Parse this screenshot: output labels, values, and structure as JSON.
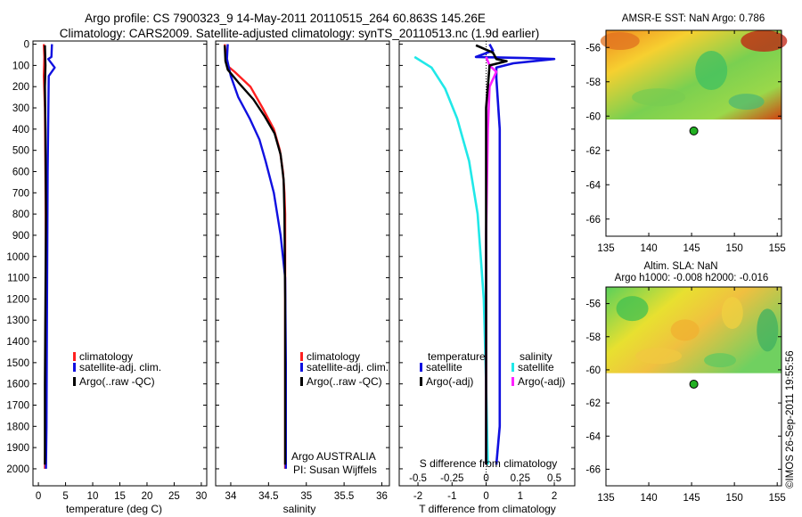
{
  "title": {
    "line1": "Argo profile: CS 7900323_9 14-May-2011 20110515_264 60.863S 145.26E",
    "line2": "Climatology: CARS2009. Satellite-adjusted climatology: synTS_20110513.nc (1.9d earlier)"
  },
  "credit": "©IMOS 26-Sep-2011 19:55:56",
  "colors": {
    "climatology": "#ff2020",
    "satellite": "#1010e0",
    "argo": "#000000",
    "sal_satellite": "#20e8e8",
    "sal_argo": "#ff20ff"
  },
  "chart_data": [
    {
      "id": "temperature",
      "type": "line",
      "xlabel": "temperature (deg C)",
      "ylabel": "",
      "xlim": [
        -1,
        31
      ],
      "ylim": [
        2080,
        -15
      ],
      "xticks": [
        0,
        5,
        10,
        15,
        20,
        25,
        30
      ],
      "yticks": [
        0,
        100,
        200,
        300,
        400,
        500,
        600,
        700,
        800,
        900,
        1000,
        1100,
        1200,
        1300,
        1400,
        1500,
        1600,
        1700,
        1800,
        1900,
        2000
      ],
      "legend": [
        "climatology",
        "satellite-adj. clim.",
        "Argo(..raw -QC)"
      ],
      "series": [
        {
          "name": "climatology",
          "color_key": "climatology",
          "x": [
            1.0,
            1.1,
            1.0,
            1.2,
            1.3,
            1.4,
            1.3,
            1.3,
            1.2
          ],
          "y": [
            0,
            60,
            150,
            300,
            600,
            1000,
            1400,
            1800,
            2000
          ]
        },
        {
          "name": "satellite-adj. clim.",
          "color_key": "satellite",
          "x": [
            2.5,
            2.4,
            1.8,
            3.0,
            1.9,
            1.7,
            1.6,
            1.5,
            1.4
          ],
          "y": [
            0,
            60,
            70,
            110,
            150,
            600,
            1200,
            1800,
            2000
          ]
        },
        {
          "name": "Argo(..raw -QC)",
          "color_key": "argo",
          "x": [
            1.2,
            1.3,
            1.2,
            1.3,
            1.4,
            1.3,
            1.2,
            1.2
          ],
          "y": [
            5,
            100,
            200,
            400,
            800,
            1200,
            1600,
            1980
          ]
        }
      ]
    },
    {
      "id": "salinity",
      "type": "line",
      "xlabel": "salinity",
      "ylabel": "",
      "xlim": [
        33.8,
        36.1
      ],
      "ylim": [
        2080,
        -15
      ],
      "xticks": [
        34,
        34.5,
        35,
        35.5,
        36
      ],
      "legend": [
        "climatology",
        "satellite-adj. clim.",
        "Argo(..raw -QC)"
      ],
      "annotation": [
        "Argo AUSTRALIA",
        "PI: Susan Wijffels"
      ],
      "series": [
        {
          "name": "climatology",
          "color_key": "climatology",
          "x": [
            33.92,
            33.95,
            34.05,
            34.26,
            34.42,
            34.57,
            34.65,
            34.69,
            34.71,
            34.72,
            34.72,
            34.72
          ],
          "y": [
            0,
            100,
            130,
            200,
            300,
            400,
            500,
            600,
            700,
            800,
            1200,
            2000
          ]
        },
        {
          "name": "satellite-adj. clim.",
          "color_key": "satellite",
          "x": [
            33.96,
            33.95,
            34.0,
            34.1,
            34.25,
            34.38,
            34.46,
            34.57,
            34.66,
            34.72,
            34.73,
            34.73
          ],
          "y": [
            0,
            70,
            150,
            250,
            350,
            450,
            550,
            700,
            900,
            1100,
            1500,
            2000
          ]
        },
        {
          "name": "Argo(..raw -QC)",
          "color_key": "argo",
          "x": [
            33.92,
            33.93,
            33.96,
            34.1,
            34.3,
            34.45,
            34.58,
            34.66,
            34.7,
            34.71,
            34.72,
            34.72
          ],
          "y": [
            5,
            80,
            120,
            180,
            260,
            340,
            420,
            520,
            640,
            800,
            1200,
            1980
          ]
        }
      ]
    },
    {
      "id": "difference",
      "type": "line",
      "xlabel": "T difference from climatology",
      "title_inside": "S difference from climatology",
      "ylabel": "",
      "xlim": [
        -2.55,
        2.6
      ],
      "ylim": [
        2080,
        -15
      ],
      "xticks_T": [
        -2,
        -1,
        0,
        1,
        2
      ],
      "xticks_S": [
        -0.5,
        -0.25,
        0,
        0.25,
        0.5
      ],
      "legend": {
        "temperature_header": "temperature",
        "salinity_header": "salinity",
        "items": [
          "satellite",
          "Argo(-adj)",
          "satellite",
          "Argo(-adj)"
        ]
      },
      "series": [
        {
          "name": "temperature satellite",
          "color_key": "satellite",
          "x": [
            0.1,
            0.2,
            -0.3,
            1.1,
            2.0,
            0.8,
            0.3,
            0.3,
            0.4,
            0.4,
            0.4,
            0.4,
            0.3
          ],
          "y": [
            0,
            30,
            60,
            65,
            70,
            90,
            110,
            160,
            400,
            900,
            1400,
            1800,
            1980
          ]
        },
        {
          "name": "temperature Argo(-adj)",
          "color_key": "argo",
          "x": [
            -0.3,
            0.2,
            0.3,
            0.6,
            0.1,
            0.0,
            0.0,
            0.0,
            0.0,
            0.0
          ],
          "y": [
            5,
            40,
            70,
            80,
            100,
            300,
            600,
            1000,
            1500,
            1980
          ]
        },
        {
          "name": "salinity satellite",
          "color_key": "sal_satellite",
          "x": [
            -2.1,
            -1.6,
            -1.2,
            -0.85,
            -0.5,
            -0.25,
            -0.07,
            0.0,
            0.05
          ],
          "y": [
            60,
            110,
            210,
            350,
            550,
            800,
            1200,
            1600,
            1980
          ]
        },
        {
          "name": "salinity Argo(-adj)",
          "color_key": "sal_argo",
          "x": [
            0.0,
            0.1,
            0.3,
            0.1,
            0.05,
            0.0,
            0.0,
            0.0
          ],
          "y": [
            60,
            100,
            130,
            200,
            400,
            900,
            1500,
            1980
          ]
        }
      ]
    },
    {
      "id": "sst_map",
      "type": "heatmap",
      "title": "AMSR-E SST: NaN Argo: 0.786",
      "xlim": [
        135,
        155.5
      ],
      "ylim": [
        -67,
        -55
      ],
      "xticks": [
        135,
        140,
        145,
        150,
        155
      ],
      "yticks": [
        -56,
        -58,
        -60,
        -62,
        -64,
        -66
      ],
      "data_lat_range": [
        -60.2,
        -55
      ],
      "marker": {
        "lon": 145.26,
        "lat": -60.863
      }
    },
    {
      "id": "sla_map",
      "type": "heatmap",
      "title": "Altim. SLA: NaN",
      "subtitle": "Argo h1000: -0.008 h2000: -0.016",
      "xlim": [
        135,
        155.5
      ],
      "ylim": [
        -67,
        -55
      ],
      "xticks": [
        135,
        140,
        145,
        150,
        155
      ],
      "yticks": [
        -56,
        -58,
        -60,
        -62,
        -64,
        -66
      ],
      "data_lat_range": [
        -60.2,
        -55
      ],
      "marker": {
        "lon": 145.26,
        "lat": -60.863
      }
    }
  ]
}
